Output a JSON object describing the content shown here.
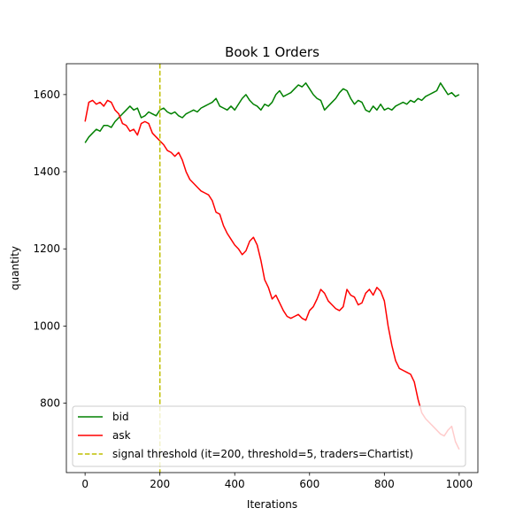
{
  "chart_data": {
    "type": "line",
    "title": "Book 1 Orders",
    "xlabel": "Iterations",
    "ylabel": "quantity",
    "xlim": [
      -50,
      1050
    ],
    "ylim": [
      620,
      1680
    ],
    "xticks": [
      0,
      200,
      400,
      600,
      800,
      1000
    ],
    "yticks": [
      800,
      1000,
      1200,
      1400,
      1600
    ],
    "grid": false,
    "legend_position": "lower-left",
    "series": [
      {
        "name": "bid",
        "color": "#008000",
        "x": [
          0,
          10,
          20,
          30,
          40,
          50,
          60,
          70,
          80,
          90,
          100,
          110,
          120,
          130,
          140,
          150,
          160,
          170,
          180,
          190,
          200,
          210,
          220,
          230,
          240,
          250,
          260,
          270,
          280,
          290,
          300,
          310,
          320,
          330,
          340,
          350,
          360,
          370,
          380,
          390,
          400,
          410,
          420,
          430,
          440,
          450,
          460,
          470,
          480,
          490,
          500,
          510,
          520,
          530,
          540,
          550,
          560,
          570,
          580,
          590,
          600,
          610,
          620,
          630,
          640,
          650,
          660,
          670,
          680,
          690,
          700,
          710,
          720,
          730,
          740,
          750,
          760,
          770,
          780,
          790,
          800,
          810,
          820,
          830,
          840,
          850,
          860,
          870,
          880,
          890,
          900,
          910,
          920,
          930,
          940,
          950,
          960,
          970,
          980,
          990,
          1000
        ],
        "values": [
          1475,
          1490,
          1500,
          1510,
          1505,
          1520,
          1520,
          1515,
          1530,
          1540,
          1550,
          1560,
          1570,
          1560,
          1565,
          1540,
          1545,
          1555,
          1550,
          1545,
          1560,
          1565,
          1555,
          1550,
          1555,
          1545,
          1540,
          1550,
          1555,
          1560,
          1555,
          1565,
          1570,
          1575,
          1580,
          1590,
          1570,
          1565,
          1560,
          1570,
          1560,
          1575,
          1590,
          1600,
          1585,
          1575,
          1570,
          1560,
          1575,
          1570,
          1580,
          1600,
          1610,
          1595,
          1600,
          1605,
          1615,
          1625,
          1620,
          1630,
          1615,
          1600,
          1590,
          1585,
          1560,
          1570,
          1580,
          1590,
          1605,
          1615,
          1610,
          1590,
          1575,
          1585,
          1580,
          1560,
          1555,
          1570,
          1560,
          1575,
          1560,
          1565,
          1560,
          1570,
          1575,
          1580,
          1575,
          1585,
          1580,
          1590,
          1585,
          1595,
          1600,
          1605,
          1610,
          1630,
          1615,
          1600,
          1605,
          1595,
          1600
        ]
      },
      {
        "name": "ask",
        "color": "#ff0000",
        "x": [
          0,
          10,
          20,
          30,
          40,
          50,
          60,
          70,
          80,
          90,
          100,
          110,
          120,
          130,
          140,
          150,
          160,
          170,
          180,
          190,
          200,
          210,
          220,
          230,
          240,
          250,
          260,
          270,
          280,
          290,
          300,
          310,
          320,
          330,
          340,
          350,
          360,
          370,
          380,
          390,
          400,
          410,
          420,
          430,
          440,
          450,
          460,
          470,
          480,
          490,
          500,
          510,
          520,
          530,
          540,
          550,
          560,
          570,
          580,
          590,
          600,
          610,
          620,
          630,
          640,
          650,
          660,
          670,
          680,
          690,
          700,
          710,
          720,
          730,
          740,
          750,
          760,
          770,
          780,
          790,
          800,
          810,
          820,
          830,
          840,
          850,
          860,
          870,
          880,
          890,
          900,
          910,
          920,
          930,
          940,
          950,
          960,
          970,
          980,
          990,
          1000
        ],
        "values": [
          1530,
          1580,
          1585,
          1575,
          1580,
          1570,
          1585,
          1580,
          1560,
          1550,
          1525,
          1520,
          1505,
          1510,
          1495,
          1525,
          1530,
          1525,
          1500,
          1490,
          1480,
          1470,
          1455,
          1450,
          1440,
          1450,
          1430,
          1400,
          1380,
          1370,
          1360,
          1350,
          1345,
          1340,
          1325,
          1295,
          1290,
          1260,
          1240,
          1225,
          1210,
          1200,
          1185,
          1195,
          1220,
          1230,
          1210,
          1170,
          1120,
          1100,
          1070,
          1080,
          1060,
          1040,
          1025,
          1020,
          1025,
          1030,
          1020,
          1015,
          1040,
          1050,
          1070,
          1095,
          1085,
          1065,
          1055,
          1045,
          1040,
          1050,
          1095,
          1080,
          1075,
          1055,
          1060,
          1085,
          1095,
          1080,
          1100,
          1090,
          1065,
          1000,
          950,
          910,
          890,
          885,
          880,
          875,
          855,
          810,
          775,
          760,
          750,
          740,
          730,
          720,
          715,
          730,
          740,
          700,
          680
        ]
      },
      {
        "name": "signal threshold (it=200, threshold=5, traders=Chartist)",
        "color": "#bfbf00",
        "style": "dashed",
        "vline_x": 200
      }
    ]
  }
}
